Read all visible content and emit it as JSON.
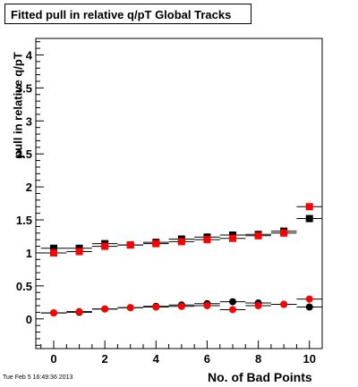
{
  "title": "Fitted pull in relative q/pT  Global Tracks",
  "timestamp": "Tue Feb  5 16:49:36 2013",
  "chart_data": {
    "type": "scatter",
    "title": "Fitted pull in relative q/pT  Global Tracks",
    "xlabel": "No. of Bad Points",
    "ylabel": "pull in relative q/pT",
    "xlim": [
      -0.7,
      10.5
    ],
    "ylim": [
      -0.45,
      4.25
    ],
    "xticks": [
      "0",
      "2",
      "4",
      "6",
      "8",
      "10"
    ],
    "xtick_values": [
      0,
      2,
      4,
      6,
      8,
      10
    ],
    "yticks": [
      "0",
      "0.5",
      "1",
      "1.5",
      "2",
      "2.5",
      "3",
      "3.5",
      "4"
    ],
    "ytick_values": [
      0,
      0.5,
      1,
      1.5,
      2,
      2.5,
      3,
      3.5,
      4
    ],
    "grid": false,
    "series": [
      {
        "color": "#000000",
        "marker": "square",
        "x": [
          0,
          1,
          2,
          3,
          4,
          5,
          6,
          7,
          8,
          9,
          10
        ],
        "y": [
          1.07,
          1.07,
          1.14,
          1.12,
          1.16,
          1.21,
          1.24,
          1.27,
          1.28,
          1.33,
          1.52
        ]
      },
      {
        "color": "#ff0000",
        "marker": "square",
        "x": [
          0,
          1,
          2,
          3,
          4,
          5,
          6,
          7,
          8,
          9,
          10
        ],
        "y": [
          1.0,
          1.02,
          1.1,
          1.12,
          1.14,
          1.17,
          1.2,
          1.22,
          1.26,
          1.3,
          1.7
        ]
      },
      {
        "color": "#000000",
        "marker": "circle",
        "x": [
          0,
          1,
          2,
          3,
          4,
          5,
          6,
          7,
          8,
          9,
          10
        ],
        "y": [
          0.09,
          0.1,
          0.15,
          0.17,
          0.19,
          0.21,
          0.23,
          0.26,
          0.24,
          0.22,
          0.18
        ]
      },
      {
        "color": "#ff0000",
        "marker": "circle",
        "x": [
          0,
          1,
          2,
          3,
          4,
          5,
          6,
          7,
          8,
          9,
          10
        ],
        "y": [
          0.09,
          0.11,
          0.15,
          0.17,
          0.18,
          0.19,
          0.2,
          0.14,
          0.2,
          0.22,
          0.3
        ]
      }
    ]
  }
}
